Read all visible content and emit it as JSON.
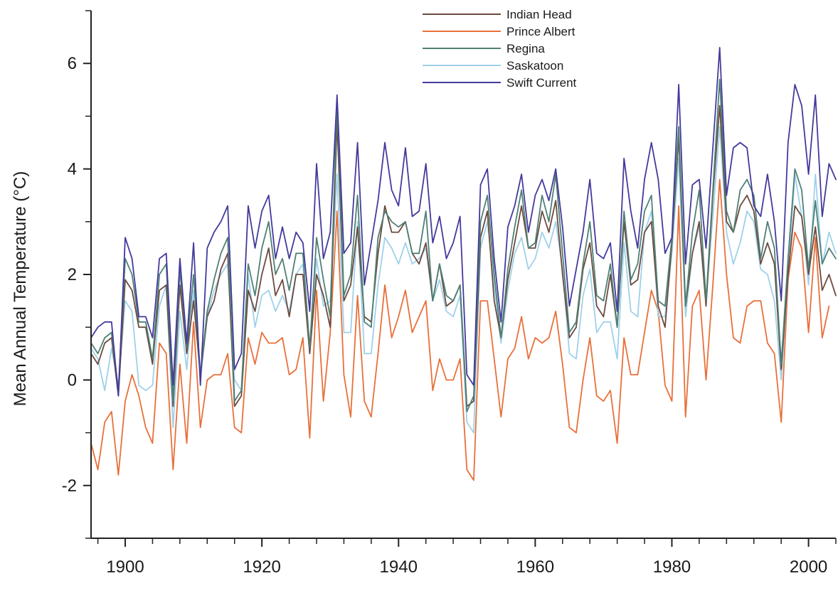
{
  "chart_data": {
    "type": "line",
    "title": "",
    "xlabel": "",
    "ylabel": "Mean Annual Temperature (°C)",
    "xlim": [
      1895,
      2004
    ],
    "ylim": [
      -3,
      7
    ],
    "x_ticks": [
      1900,
      1920,
      1940,
      1960,
      1980,
      2000
    ],
    "x_tick_labels": [
      "1900",
      "1920",
      "1940",
      "1960",
      "1980",
      "2000"
    ],
    "y_ticks": [
      -2,
      0,
      2,
      4,
      6
    ],
    "y_tick_labels": [
      "-2",
      "0",
      "2",
      "4",
      "6"
    ],
    "grid": false,
    "legend_position": "top-center",
    "x_start": 1895,
    "series": [
      {
        "name": "Indian Head",
        "color": "#6b4a3f",
        "values": [
          0.5,
          0.3,
          0.7,
          0.8,
          -0.3,
          1.9,
          1.7,
          1.0,
          1.0,
          0.3,
          1.7,
          1.8,
          -0.5,
          1.8,
          0.5,
          1.5,
          0.1,
          1.2,
          1.5,
          2.1,
          2.4,
          -0.5,
          -0.3,
          1.7,
          1.3,
          2.0,
          2.5,
          1.6,
          1.9,
          1.2,
          2.0,
          2.0,
          0.5,
          2.0,
          1.6,
          1.0,
          4.9,
          1.5,
          1.8,
          2.9,
          1.2,
          1.1,
          2.4,
          3.3,
          2.8,
          2.8,
          3.0,
          2.4,
          2.2,
          2.6,
          1.5,
          2.2,
          1.4,
          1.5,
          1.8,
          -0.5,
          -0.4,
          2.7,
          3.2,
          1.5,
          0.8,
          1.9,
          2.6,
          3.3,
          2.5,
          2.5,
          3.2,
          2.8,
          3.4,
          2.0,
          0.8,
          1.0,
          2.1,
          2.6,
          1.4,
          1.2,
          2.0,
          1.0,
          3.0,
          1.8,
          1.9,
          2.8,
          3.0,
          1.4,
          1.0,
          2.6,
          4.6,
          1.4,
          2.4,
          3.0,
          1.4,
          3.5,
          5.2,
          3.0,
          2.8,
          3.3,
          3.5,
          3.2,
          2.2,
          2.6,
          2.2,
          0.2,
          2.0,
          3.3,
          3.1,
          2.0,
          2.9,
          1.7,
          2.0,
          1.6
        ]
      },
      {
        "name": "Prince Albert",
        "color": "#e8703a",
        "values": [
          -1.2,
          -1.7,
          -0.8,
          -0.6,
          -1.8,
          -0.4,
          0.1,
          -0.3,
          -0.9,
          -1.2,
          0.7,
          0.5,
          -1.7,
          0.3,
          -1.2,
          1.1,
          -0.9,
          0.0,
          0.1,
          0.1,
          0.5,
          -0.9,
          -1.0,
          0.8,
          0.3,
          0.9,
          0.7,
          0.7,
          0.8,
          0.1,
          0.2,
          0.8,
          -1.1,
          1.7,
          -0.4,
          0.9,
          3.2,
          0.1,
          -0.7,
          1.6,
          -0.4,
          -0.7,
          0.5,
          1.8,
          0.8,
          1.2,
          1.7,
          0.9,
          1.2,
          1.5,
          -0.2,
          0.4,
          0.0,
          0.0,
          0.4,
          -1.7,
          -1.9,
          1.5,
          1.5,
          0.4,
          -0.7,
          0.4,
          0.6,
          1.2,
          0.4,
          0.8,
          0.7,
          0.8,
          1.3,
          0.3,
          -0.9,
          -1.0,
          0.0,
          0.8,
          -0.3,
          -0.4,
          -0.2,
          -1.2,
          0.8,
          0.1,
          0.1,
          0.9,
          1.7,
          1.3,
          -0.1,
          -0.4,
          3.3,
          -0.7,
          1.4,
          1.7,
          0.0,
          1.8,
          3.8,
          2.0,
          0.8,
          0.7,
          1.4,
          1.5,
          1.5,
          0.7,
          0.5,
          -0.8,
          1.9,
          2.8,
          2.5,
          0.9,
          2.7,
          0.8,
          1.4
        ]
      },
      {
        "name": "Regina",
        "color": "#4f8074",
        "values": [
          0.7,
          0.5,
          0.8,
          0.9,
          -0.2,
          2.3,
          2.0,
          1.1,
          1.1,
          0.4,
          2.0,
          2.2,
          -0.4,
          2.1,
          0.6,
          2.0,
          0.1,
          1.3,
          1.9,
          2.4,
          2.7,
          -0.4,
          -0.2,
          2.2,
          1.6,
          2.5,
          3.0,
          2.0,
          2.3,
          1.7,
          2.4,
          2.4,
          0.6,
          2.7,
          1.9,
          1.2,
          5.3,
          1.6,
          2.0,
          3.5,
          1.1,
          1.0,
          2.7,
          3.2,
          3.0,
          2.9,
          3.0,
          2.4,
          2.4,
          3.2,
          1.5,
          2.2,
          1.6,
          1.5,
          1.8,
          -0.6,
          -0.3,
          3.0,
          3.5,
          2.0,
          0.8,
          2.1,
          2.9,
          3.6,
          2.5,
          2.6,
          3.5,
          3.0,
          3.9,
          2.4,
          0.9,
          1.1,
          2.2,
          3.0,
          1.6,
          1.5,
          2.2,
          1.0,
          3.2,
          1.9,
          2.2,
          3.2,
          3.5,
          1.5,
          1.4,
          2.7,
          4.8,
          1.4,
          2.8,
          3.6,
          1.5,
          3.6,
          5.7,
          3.2,
          2.8,
          3.6,
          3.8,
          3.5,
          2.3,
          3.0,
          2.5,
          0.3,
          2.3,
          4.0,
          3.6,
          2.1,
          3.4,
          2.2,
          2.5,
          2.3
        ]
      },
      {
        "name": "Saskatoon",
        "color": "#9fd1ea",
        "values": [
          0.6,
          0.4,
          -0.2,
          0.6,
          -0.1,
          1.5,
          1.3,
          -0.1,
          -0.2,
          -0.1,
          1.4,
          1.8,
          -0.9,
          1.3,
          0.2,
          1.7,
          0.0,
          1.2,
          1.7,
          2.0,
          2.2,
          0.0,
          -0.2,
          2.0,
          1.0,
          1.6,
          1.7,
          1.3,
          1.6,
          1.3,
          2.0,
          2.2,
          0.6,
          2.3,
          1.4,
          1.5,
          3.9,
          0.9,
          0.9,
          3.0,
          0.5,
          0.5,
          1.8,
          2.7,
          2.5,
          2.2,
          2.6,
          2.2,
          2.3,
          2.5,
          1.5,
          1.9,
          1.3,
          1.2,
          1.6,
          -0.8,
          -1.0,
          2.5,
          3.0,
          1.8,
          0.7,
          1.7,
          2.4,
          2.7,
          2.1,
          2.3,
          2.8,
          2.5,
          3.0,
          2.1,
          0.5,
          0.4,
          1.6,
          2.1,
          0.9,
          1.1,
          1.1,
          0.4,
          2.6,
          1.3,
          1.2,
          2.8,
          3.2,
          1.2,
          1.2,
          2.4,
          4.2,
          1.2,
          2.4,
          2.9,
          1.5,
          3.1,
          4.8,
          2.8,
          2.2,
          2.6,
          3.2,
          3.0,
          2.1,
          2.0,
          1.5,
          0.0,
          2.0,
          3.9,
          3.1,
          1.8,
          3.9,
          2.2,
          2.8,
          2.4
        ]
      },
      {
        "name": "Swift Current",
        "color": "#433a9c",
        "values": [
          0.8,
          1.0,
          1.1,
          1.1,
          -0.3,
          2.7,
          2.3,
          1.2,
          1.2,
          0.8,
          2.3,
          2.4,
          -0.1,
          2.3,
          0.7,
          2.6,
          -0.1,
          2.5,
          2.8,
          3.0,
          3.3,
          0.2,
          0.5,
          3.3,
          2.5,
          3.2,
          3.5,
          2.3,
          2.9,
          2.3,
          2.8,
          2.6,
          1.3,
          4.1,
          2.3,
          2.8,
          5.4,
          2.4,
          2.6,
          4.5,
          1.8,
          2.6,
          3.4,
          4.5,
          3.6,
          3.3,
          4.4,
          3.1,
          3.2,
          4.1,
          2.6,
          3.1,
          2.3,
          2.6,
          3.1,
          0.1,
          -0.1,
          3.7,
          4.0,
          2.3,
          1.1,
          2.9,
          3.3,
          3.9,
          2.8,
          3.5,
          3.8,
          3.4,
          4.0,
          2.9,
          1.4,
          2.1,
          2.8,
          3.8,
          2.4,
          2.3,
          2.6,
          1.3,
          4.2,
          3.2,
          2.5,
          3.8,
          4.5,
          3.8,
          2.4,
          2.7,
          5.6,
          2.2,
          3.7,
          3.8,
          2.5,
          4.4,
          6.3,
          3.5,
          4.4,
          4.5,
          4.4,
          3.3,
          3.1,
          3.9,
          3.0,
          1.5,
          4.5,
          5.6,
          5.2,
          3.9,
          5.4,
          3.1,
          4.1,
          3.8
        ]
      }
    ]
  }
}
